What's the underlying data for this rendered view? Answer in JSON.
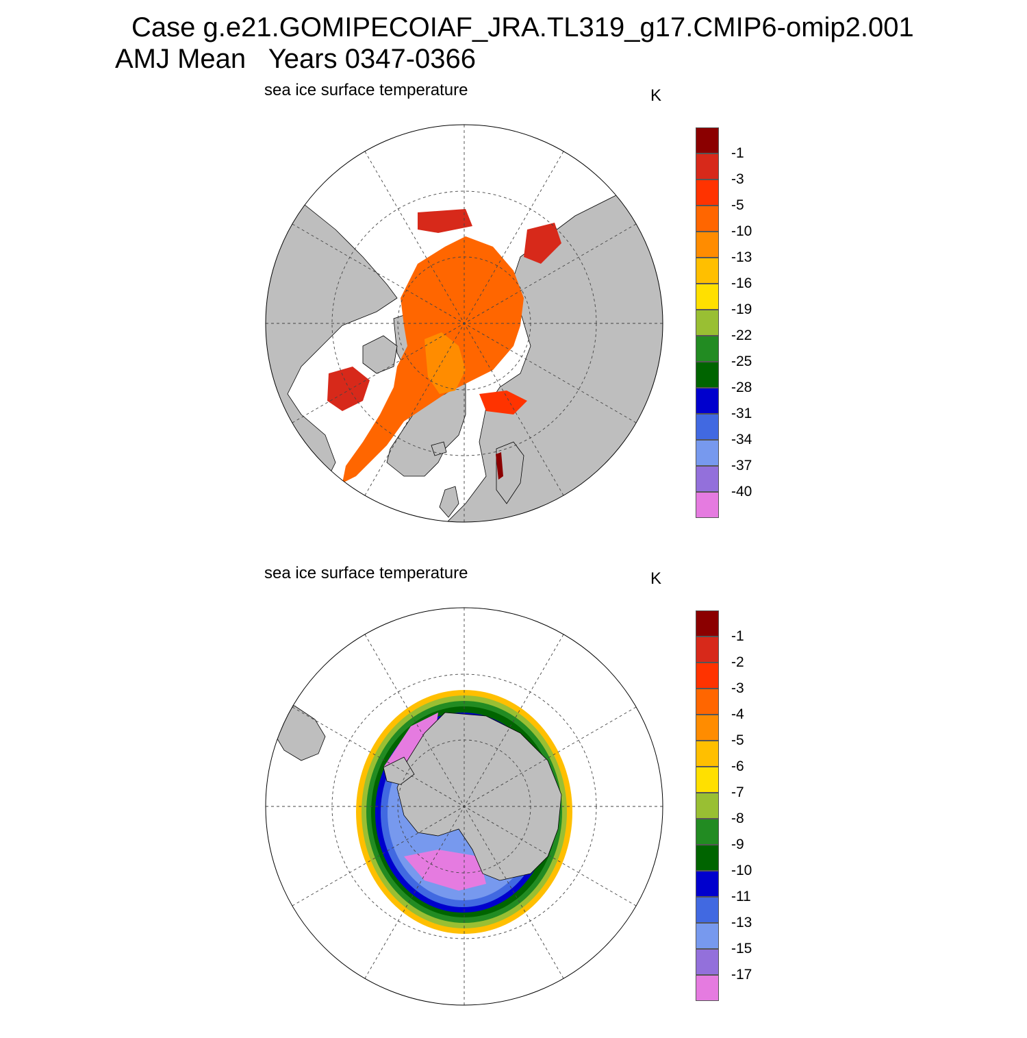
{
  "header": {
    "title_line1": "Case g.e21.GOMIPECOIAF_JRA.TL319_g17.CMIP6-omip2.001",
    "title_line2": "AMJ Mean   Years 0347-0366"
  },
  "panels": [
    {
      "id": "north",
      "hemisphere": "Northern Hemisphere (polar stereographic)",
      "subtitle": "sea ice surface temperature",
      "units": "K",
      "colorbar": {
        "labels": [
          "-1",
          "-3",
          "-5",
          "-10",
          "-13",
          "-16",
          "-19",
          "-22",
          "-25",
          "-28",
          "-31",
          "-34",
          "-37",
          "-40"
        ],
        "colors": [
          "#8b0000",
          "#d7291a",
          "#ff3300",
          "#ff6600",
          "#ff8c00",
          "#ffbf00",
          "#ffe000",
          "#99bf33",
          "#228b22",
          "#006400",
          "#0000cd",
          "#4169e1",
          "#7799ee",
          "#9370db",
          "#e57be0"
        ]
      }
    },
    {
      "id": "south",
      "hemisphere": "Southern Hemisphere (polar stereographic)",
      "subtitle": "sea ice surface temperature",
      "units": "K",
      "colorbar": {
        "labels": [
          "-1",
          "-2",
          "-3",
          "-4",
          "-5",
          "-6",
          "-7",
          "-8",
          "-9",
          "-10",
          "-11",
          "-13",
          "-15",
          "-17"
        ],
        "colors": [
          "#8b0000",
          "#d7291a",
          "#ff3300",
          "#ff6600",
          "#ff8c00",
          "#ffbf00",
          "#ffe000",
          "#99bf33",
          "#228b22",
          "#006400",
          "#0000cd",
          "#4169e1",
          "#7799ee",
          "#9370db",
          "#e57be0"
        ]
      }
    }
  ],
  "style": {
    "land_color": "#bebebe",
    "ocean_color": "#ffffff",
    "grid_color": "#444444"
  }
}
